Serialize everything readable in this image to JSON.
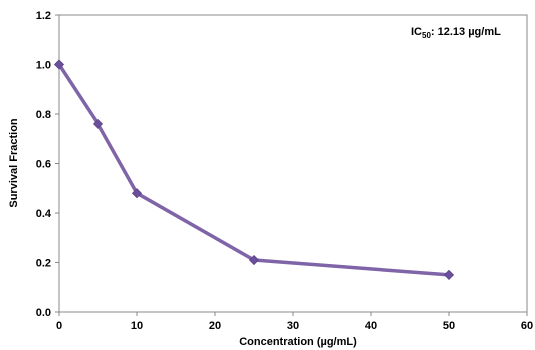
{
  "chart_data": {
    "type": "line",
    "x": [
      0,
      5,
      10,
      25,
      50
    ],
    "series": [
      {
        "values": [
          1.0,
          0.76,
          0.48,
          0.21,
          0.15
        ]
      }
    ],
    "xlabel": "Concentration (µg/mL)",
    "ylabel": "Survival Fraction",
    "xlim": [
      0,
      60
    ],
    "ylim": [
      0,
      1.2
    ],
    "x_ticks": [
      0,
      10,
      20,
      30,
      40,
      50,
      60
    ],
    "y_ticks": [
      0.0,
      0.2,
      0.4,
      0.6,
      0.8,
      1.0,
      1.2
    ],
    "y_tick_labels": [
      "0.0",
      "0.2",
      "0.4",
      "0.6",
      "0.8",
      "1.0",
      "1.2"
    ],
    "grid": false,
    "annotation": {
      "prefix": "IC",
      "subscript": "50",
      "suffix": ": 12.13 µg/mL"
    },
    "colors": {
      "line": "#7f64a8",
      "marker": "#6b4f9a",
      "axis": "#888888"
    }
  }
}
